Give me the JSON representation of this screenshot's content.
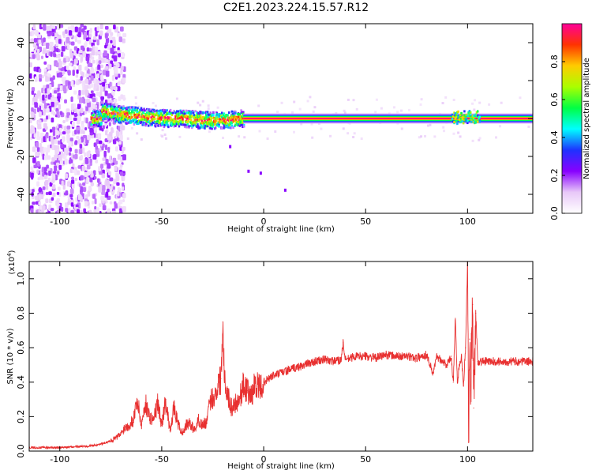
{
  "title": "C2E1.2023.224.15.57.R12",
  "chart_data": [
    {
      "type": "heatmap",
      "xlabel": "Height of straight line (km)",
      "ylabel": "Frequency (Hz)",
      "xlim": [
        -115,
        132
      ],
      "ylim": [
        -50,
        50
      ],
      "x_ticks": [
        -100,
        -50,
        0,
        50,
        100
      ],
      "y_ticks": [
        -40,
        -20,
        0,
        20,
        40
      ],
      "colorbar": {
        "label": "Normalized spectral amplitude",
        "range": [
          0.0,
          1.0
        ],
        "ticks": [
          0.0,
          0.2,
          0.4,
          0.6,
          0.8
        ],
        "colormap": [
          "#ffffff",
          "#e8c8f8",
          "#8800ff",
          "#1e32ff",
          "#00ffff",
          "#00ff44",
          "#aaff00",
          "#ffcc00",
          "#ff3300",
          "#ff0099"
        ]
      },
      "features": {
        "noise_region_x": [
          -115,
          -73
        ],
        "ridge": [
          {
            "x": -80,
            "y": 4
          },
          {
            "x": -70,
            "y": 2
          },
          {
            "x": -60,
            "y": 1
          },
          {
            "x": -50,
            "y": 0
          },
          {
            "x": -40,
            "y": 0
          },
          {
            "x": -30,
            "y": -1
          },
          {
            "x": -20,
            "y": -1
          },
          {
            "x": -10,
            "y": 0
          },
          {
            "x": 0,
            "y": 0
          },
          {
            "x": 50,
            "y": 0
          },
          {
            "x": 90,
            "y": 0
          },
          {
            "x": 100,
            "y": 1
          },
          {
            "x": 132,
            "y": 0
          }
        ],
        "steady_band_x": [
          -10,
          132
        ]
      }
    },
    {
      "type": "line",
      "xlabel": "Height of straight line (km)",
      "ylabel": "SNR (10 * v/v)",
      "y_multiplier": "(x10",
      "y_multiplier_exp": "4",
      "y_multiplier_close": ")",
      "xlim": [
        -115,
        132
      ],
      "ylim": [
        0.0,
        1.1
      ],
      "x_ticks": [
        -100,
        -50,
        0,
        50,
        100
      ],
      "y_ticks": [
        0.0,
        0.2,
        0.4,
        0.6,
        0.8,
        1.0
      ],
      "color": "#e83030",
      "series": [
        {
          "x": [
            -115,
            -100,
            -85,
            -80,
            -75,
            -72,
            -70,
            -68,
            -66,
            -64,
            -62,
            -60,
            -58,
            -56,
            -54,
            -52,
            -50,
            -48,
            -46,
            -44,
            -42,
            -40,
            -38,
            -36,
            -34,
            -32,
            -30,
            -28,
            -26,
            -24,
            -22,
            -21,
            -20,
            -19,
            -18,
            -16,
            -14,
            -12,
            -10,
            -8,
            -6,
            -4,
            -2,
            0,
            5,
            10,
            15,
            20,
            25,
            30,
            35,
            38,
            39,
            40,
            45,
            50,
            55,
            60,
            65,
            70,
            75,
            80,
            83,
            85,
            88,
            90,
            92,
            93,
            94,
            95,
            96,
            97,
            98,
            99,
            100,
            100.5,
            101,
            101.5,
            102,
            102.5,
            103,
            104,
            105,
            106,
            110,
            120,
            132
          ],
          "y": [
            0.02,
            0.02,
            0.03,
            0.04,
            0.06,
            0.08,
            0.1,
            0.14,
            0.15,
            0.18,
            0.3,
            0.15,
            0.28,
            0.2,
            0.18,
            0.28,
            0.15,
            0.3,
            0.12,
            0.25,
            0.16,
            0.1,
            0.15,
            0.16,
            0.12,
            0.18,
            0.15,
            0.17,
            0.3,
            0.32,
            0.4,
            0.42,
            0.75,
            0.4,
            0.35,
            0.25,
            0.28,
            0.3,
            0.38,
            0.35,
            0.32,
            0.4,
            0.36,
            0.4,
            0.44,
            0.46,
            0.48,
            0.5,
            0.52,
            0.53,
            0.52,
            0.53,
            0.63,
            0.53,
            0.55,
            0.55,
            0.54,
            0.56,
            0.55,
            0.55,
            0.54,
            0.56,
            0.45,
            0.55,
            0.52,
            0.5,
            0.55,
            0.4,
            0.77,
            0.4,
            0.5,
            0.55,
            0.38,
            0.6,
            1.08,
            0.05,
            0.65,
            0.35,
            0.6,
            0.85,
            0.25,
            0.8,
            0.52,
            0.52,
            0.52,
            0.52,
            0.52
          ]
        }
      ]
    }
  ]
}
